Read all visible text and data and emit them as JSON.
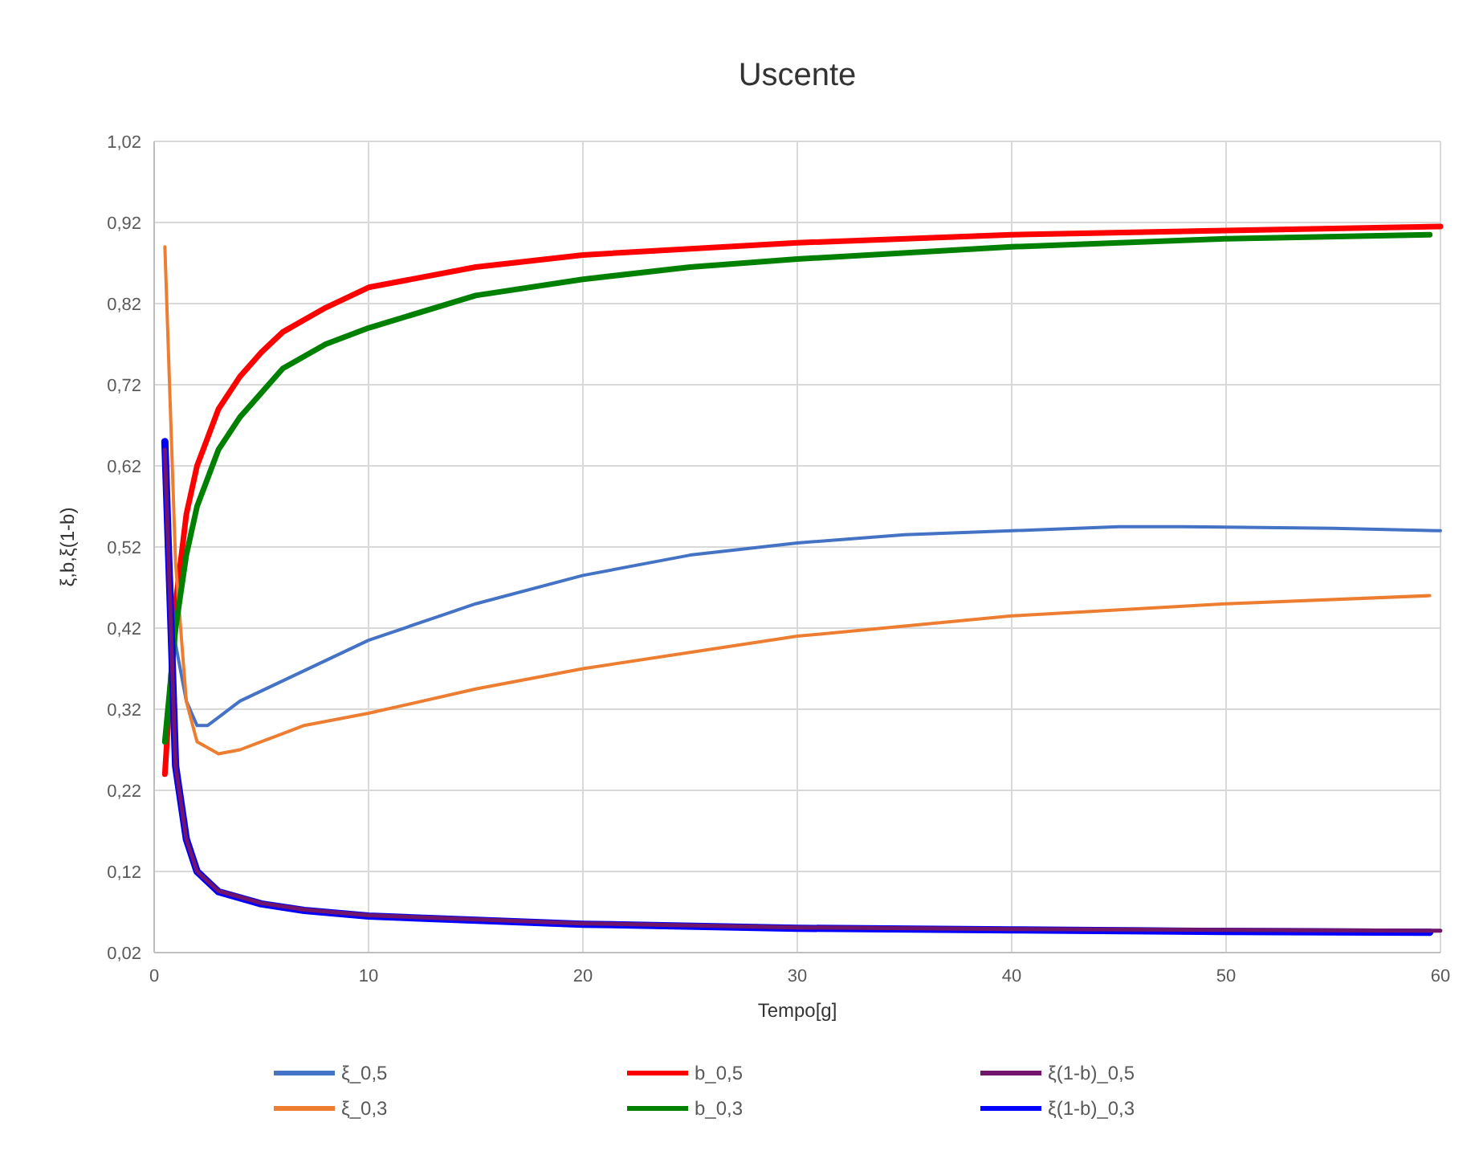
{
  "chart_data": {
    "type": "line",
    "title": "Uscente",
    "xlabel": "Tempo[g]",
    "ylabel": "ξ,b,ξ(1-b)",
    "xlim": [
      0,
      60
    ],
    "xticks": [
      0,
      10,
      20,
      30,
      40,
      50,
      60
    ],
    "ylim": [
      0.02,
      1.02
    ],
    "yticks": [
      {
        "value": 0.02,
        "label": "0,02"
      },
      {
        "value": 0.12,
        "label": "0,12"
      },
      {
        "value": 0.22,
        "label": "0,22"
      },
      {
        "value": 0.32,
        "label": "0,32"
      },
      {
        "value": 0.42,
        "label": "0,42"
      },
      {
        "value": 0.52,
        "label": "0,52"
      },
      {
        "value": 0.62,
        "label": "0,62"
      },
      {
        "value": 0.72,
        "label": "0,72"
      },
      {
        "value": 0.82,
        "label": "0,82"
      },
      {
        "value": 0.92,
        "label": "0,92"
      },
      {
        "value": 1.02,
        "label": "1,02"
      }
    ],
    "grid": true,
    "legend": "bottom",
    "marker": "none",
    "line_style": "solid",
    "series": [
      {
        "name": "ξ_0,5",
        "color": "#4472c4",
        "x": [
          0.5,
          1,
          1.5,
          2,
          2.5,
          3,
          4,
          6,
          8,
          10,
          15,
          20,
          25,
          30,
          35,
          40,
          45,
          48,
          55,
          60
        ],
        "values": [
          0.6,
          0.4,
          0.33,
          0.3,
          0.3,
          0.31,
          0.33,
          0.355,
          0.38,
          0.405,
          0.45,
          0.485,
          0.51,
          0.525,
          0.535,
          0.54,
          0.545,
          0.545,
          0.543,
          0.54
        ]
      },
      {
        "name": "b_0,5",
        "color": "#ff0000",
        "x": [
          0.5,
          1,
          1.5,
          2,
          3,
          4,
          5,
          6,
          8,
          10,
          15,
          20,
          30,
          40,
          50,
          60
        ],
        "values": [
          0.24,
          0.45,
          0.56,
          0.62,
          0.69,
          0.73,
          0.76,
          0.785,
          0.815,
          0.84,
          0.865,
          0.88,
          0.895,
          0.905,
          0.91,
          0.915
        ]
      },
      {
        "name": "ξ(1-b)_0,5",
        "color": "#70156b",
        "x": [
          0.5,
          1,
          1.5,
          2,
          3,
          5,
          7,
          10,
          20,
          30,
          40,
          50,
          60
        ],
        "values": [
          0.64,
          0.25,
          0.16,
          0.12,
          0.096,
          0.081,
          0.073,
          0.066,
          0.056,
          0.051,
          0.049,
          0.048,
          0.047
        ]
      },
      {
        "name": "ξ_0,3",
        "color": "#ed7d31",
        "x": [
          0.5,
          1,
          1.5,
          2,
          3,
          4,
          5,
          6,
          7,
          10,
          15,
          20,
          30,
          40,
          50,
          59.5
        ],
        "values": [
          0.89,
          0.5,
          0.33,
          0.28,
          0.265,
          0.27,
          0.28,
          0.29,
          0.3,
          0.315,
          0.345,
          0.37,
          0.41,
          0.435,
          0.45,
          0.46
        ]
      },
      {
        "name": "b_0,3",
        "color": "#008000",
        "x": [
          0.5,
          1,
          1.5,
          2,
          3,
          4,
          5,
          6,
          8,
          10,
          15,
          20,
          25,
          30,
          40,
          50,
          59.5
        ],
        "values": [
          0.28,
          0.42,
          0.51,
          0.57,
          0.64,
          0.68,
          0.71,
          0.74,
          0.77,
          0.79,
          0.83,
          0.85,
          0.865,
          0.875,
          0.89,
          0.9,
          0.905
        ]
      },
      {
        "name": "ξ(1-b)_0,3",
        "color": "#0000ff",
        "x": [
          0.5,
          1,
          1.5,
          2,
          3,
          5,
          7,
          10,
          20,
          30,
          40,
          50,
          59.5
        ],
        "values": [
          0.65,
          0.25,
          0.16,
          0.12,
          0.095,
          0.08,
          0.072,
          0.065,
          0.055,
          0.05,
          0.048,
          0.046,
          0.045
        ]
      }
    ]
  }
}
